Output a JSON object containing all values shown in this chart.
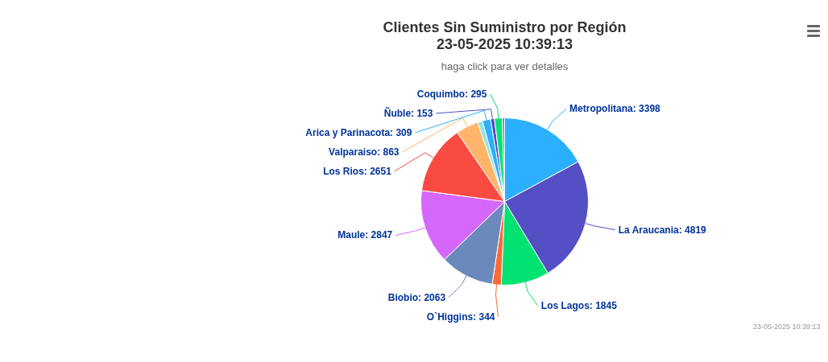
{
  "chart_data": {
    "type": "pie",
    "title": "Clientes Sin Suministro por Región\n23-05-2025 10:39:13",
    "subtitle": "haga click para ver detalles",
    "categories": [
      "Metropolitana",
      "La Araucania",
      "Los Lagos",
      "O`Higgins",
      "Biobio",
      "Maule",
      "Los Rios",
      "Valparaiso",
      null,
      "Arica y Parinacota",
      "Ñuble",
      "Coquimbo",
      null
    ],
    "values": [
      3398,
      4819,
      1845,
      344,
      2063,
      2847,
      2651,
      863,
      190,
      309,
      153,
      295,
      90
    ],
    "value_labels": [
      "3398",
      "4819",
      "1845",
      "344",
      "2063",
      "2847",
      "2651",
      "863",
      null,
      "309",
      "153",
      "295",
      null
    ],
    "colors": [
      "#2caffe",
      "#544fc5",
      "#00e272",
      "#fe6a35",
      "#6b8abc",
      "#d568fb",
      "#fa4b42",
      "#feb56a",
      "#91e8e1",
      "#2caffe",
      "#544fc5",
      "#00e272",
      "#6b8abc"
    ],
    "annotations": [
      "23-05-2025 10:39:13"
    ]
  }
}
